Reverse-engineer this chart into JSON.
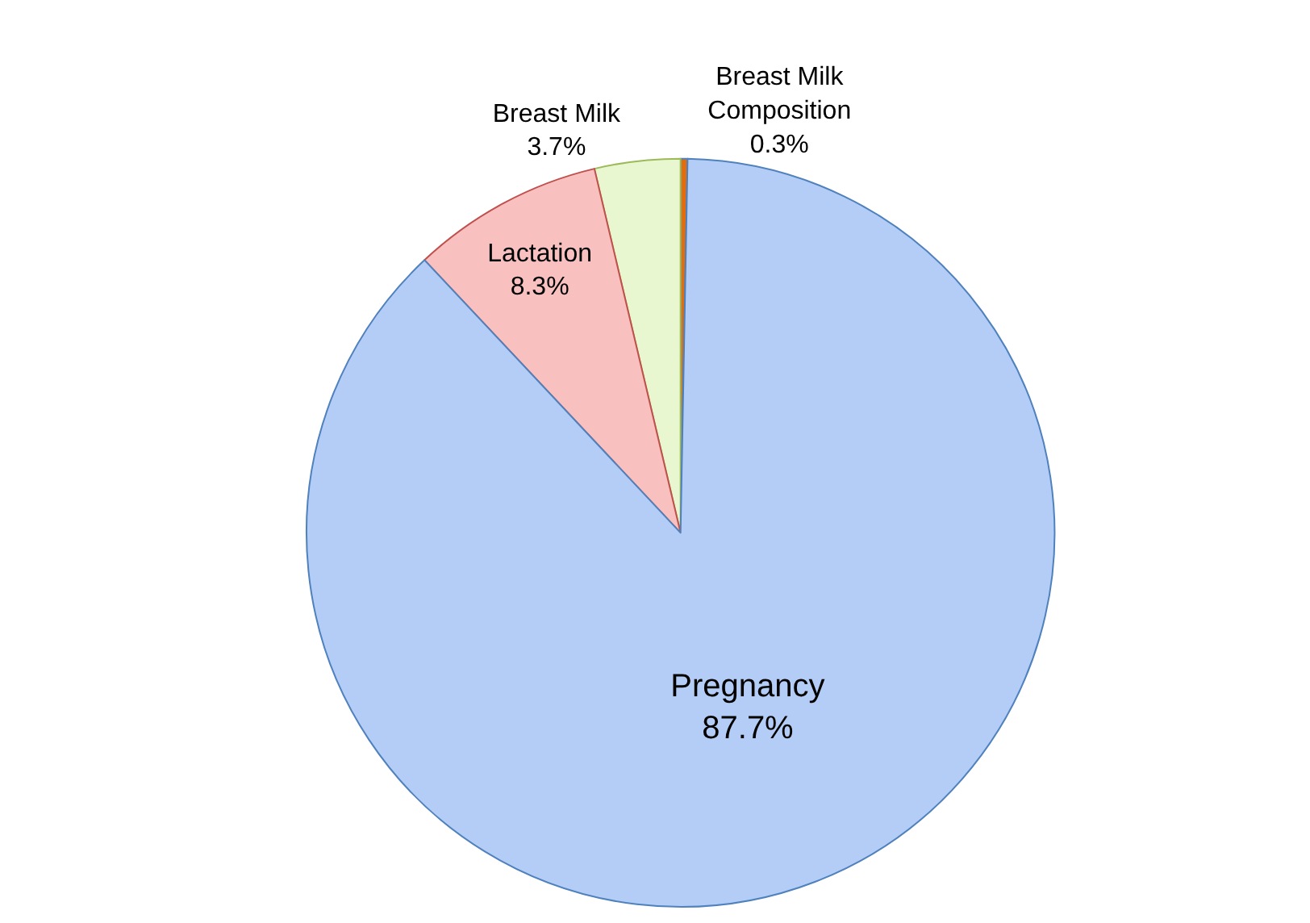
{
  "chart_data": {
    "type": "pie",
    "categories": [
      "Breast Milk Composition",
      "Breast Milk",
      "Lactation",
      "Pregnancy"
    ],
    "values": [
      0.3,
      3.7,
      8.3,
      87.7
    ],
    "value_labels": [
      "0.3%",
      "3.7%",
      "8.3%",
      "87.7%"
    ],
    "colors": [
      "#e46c0a",
      "#e8f7cf",
      "#f9c0c0",
      "#b4cdf6"
    ],
    "legend": false
  }
}
